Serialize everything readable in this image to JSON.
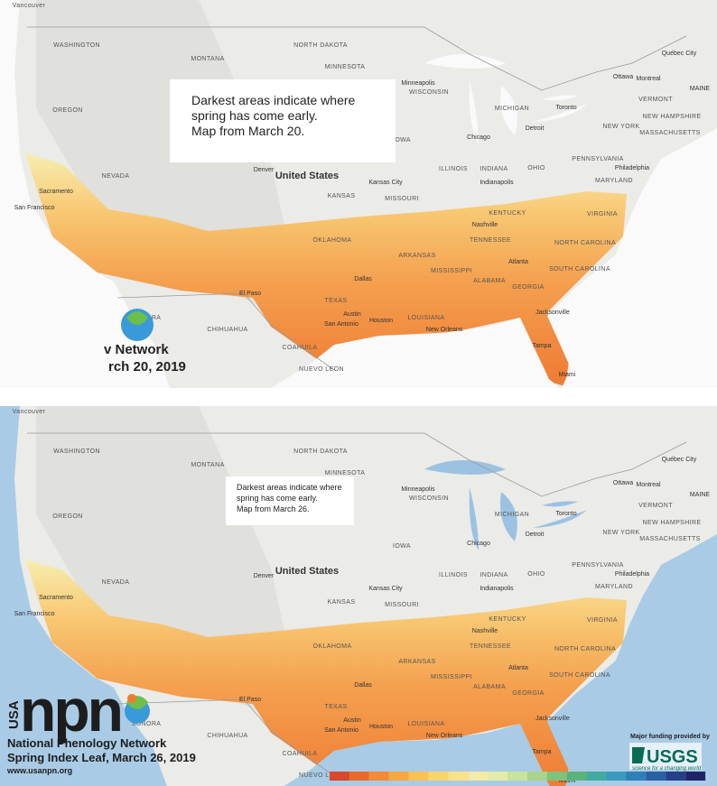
{
  "maps": [
    {
      "caption": [
        "Darkest areas indicate where",
        "spring has come early.",
        "Map from March 20."
      ],
      "country": "United States",
      "places": [
        "Vancouver",
        "WASHINGTON",
        "MONTANA",
        "NORTH DAKOTA",
        "MINNESOTA",
        "WISCONSIN",
        "MICHIGAN",
        "OREGON",
        "IOWA",
        "NEVADA",
        "KANSAS",
        "MISSOURI",
        "ILLINOIS",
        "INDIANA",
        "OHIO",
        "KENTUCKY",
        "TENNESSEE",
        "OKLAHOMA",
        "ARKANSAS",
        "MISSISSIPPI",
        "ALABAMA",
        "GEORGIA",
        "TEXAS",
        "LOUISIANA",
        "SONORA",
        "CHIHUAHUA",
        "COAHUILA",
        "NUEVO LEON",
        "NEW YORK",
        "PENNSYLVANIA",
        "VERMONT",
        "NEW HAMPSHIRE",
        "MASSACHUSETTS",
        "MARYLAND",
        "VIRGINIA",
        "NORTH CAROLINA",
        "SOUTH CAROLINA",
        "Minneapolis",
        "Chicago",
        "Detroit",
        "Toronto",
        "Ottawa",
        "Montreal",
        "Québec City",
        "Denver",
        "Kansas City",
        "Indianapolis",
        "Nashville",
        "Atlanta",
        "Dallas",
        "Houston",
        "San Antonio",
        "Austin",
        "New Orleans",
        "Jacksonville",
        "Tampa",
        "Miami",
        "El Paso",
        "San Francisco",
        "Sacramento",
        "Philadelphia",
        "MAINE"
      ],
      "logo": [
        "v Network",
        "rch 20, 2019"
      ]
    },
    {
      "caption": [
        "Darkest areas indicate where",
        "spring has come early.",
        "Map from March 26."
      ],
      "country": "United States",
      "places": [
        "Vancouver",
        "WASHINGTON",
        "MONTANA",
        "NORTH DAKOTA",
        "MINNESOTA",
        "WISCONSIN",
        "MICHIGAN",
        "OREGON",
        "IOWA",
        "NEVADA",
        "KANSAS",
        "MISSOURI",
        "ILLINOIS",
        "INDIANA",
        "OHIO",
        "KENTUCKY",
        "TENNESSEE",
        "OKLAHOMA",
        "ARKANSAS",
        "MISSISSIPPI",
        "ALABAMA",
        "GEORGIA",
        "TEXAS",
        "LOUISIANA",
        "SONORA",
        "CHIHUAHUA",
        "COAHUILA",
        "NUEVO LEON",
        "NEW YORK",
        "PENNSYLVANIA",
        "VERMONT",
        "NEW HAMPSHIRE",
        "MASSACHUSETTS",
        "MARYLAND",
        "VIRGINIA",
        "NORTH CAROLINA",
        "SOUTH CAROLINA",
        "Minneapolis",
        "Chicago",
        "Detroit",
        "Toronto",
        "Ottawa",
        "Montreal",
        "Québec City",
        "Denver",
        "Kansas City",
        "Indianapolis",
        "Nashville",
        "Atlanta",
        "Dallas",
        "Houston",
        "San Antonio",
        "Austin",
        "New Orleans",
        "Jacksonville",
        "Tampa",
        "Miami",
        "El Paso",
        "San Francisco",
        "Sacramento",
        "Philadelphia",
        "MAINE"
      ],
      "logo": {
        "usa": "USA",
        "npn": "npn",
        "name": "National Phenology Network",
        "product": "Spring Index Leaf, March 26, 2019",
        "url": "www.usanpn.org"
      },
      "funding": {
        "note": "Major funding provided by",
        "agency": "USGS",
        "tagline": "science for a changing world"
      }
    }
  ]
}
